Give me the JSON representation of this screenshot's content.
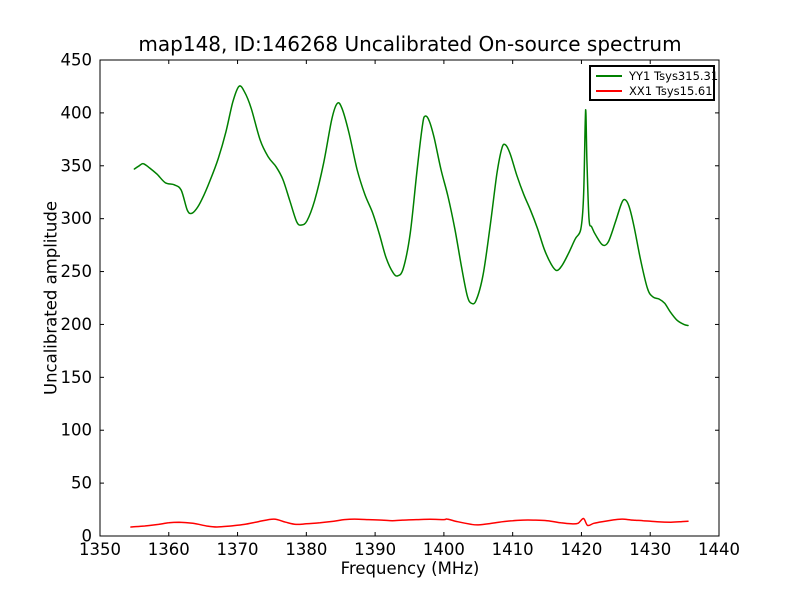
{
  "chart_data": {
    "type": "line",
    "title": "map148, ID:146268 Uncalibrated On-source spectrum",
    "xlabel": "Frequency (MHz)",
    "ylabel": "Uncalibrated amplitude",
    "xlim": [
      1350,
      1440
    ],
    "ylim": [
      0,
      450
    ],
    "xticks": [
      1350,
      1360,
      1370,
      1380,
      1390,
      1400,
      1410,
      1420,
      1430,
      1440
    ],
    "yticks": [
      0,
      50,
      100,
      150,
      200,
      250,
      300,
      350,
      400,
      450
    ],
    "grid": false,
    "legend_position": "upper right",
    "background": "#ffffff",
    "axis_color": "#000000",
    "series": [
      {
        "name": "YY1",
        "label": "YY1 Tsys315.31",
        "color": "#008000",
        "points": [
          [
            1355.0,
            347
          ],
          [
            1355.7,
            350
          ],
          [
            1356.3,
            352
          ],
          [
            1357.2,
            348
          ],
          [
            1358.3,
            342
          ],
          [
            1359.5,
            334
          ],
          [
            1360.8,
            332
          ],
          [
            1361.8,
            327
          ],
          [
            1362.7,
            308
          ],
          [
            1363.3,
            305
          ],
          [
            1364.0,
            309
          ],
          [
            1364.8,
            318
          ],
          [
            1366.0,
            336
          ],
          [
            1367.2,
            357
          ],
          [
            1368.3,
            382
          ],
          [
            1369.3,
            410
          ],
          [
            1370.2,
            425
          ],
          [
            1371.0,
            420
          ],
          [
            1372.0,
            404
          ],
          [
            1373.3,
            374
          ],
          [
            1374.5,
            358
          ],
          [
            1375.6,
            349
          ],
          [
            1376.6,
            337
          ],
          [
            1377.6,
            317
          ],
          [
            1378.6,
            297
          ],
          [
            1379.3,
            294
          ],
          [
            1380.1,
            298
          ],
          [
            1381.2,
            317
          ],
          [
            1382.5,
            352
          ],
          [
            1383.7,
            394
          ],
          [
            1384.5,
            409
          ],
          [
            1385.2,
            404
          ],
          [
            1386.2,
            381
          ],
          [
            1387.4,
            346
          ],
          [
            1388.5,
            323
          ],
          [
            1389.6,
            306
          ],
          [
            1390.6,
            286
          ],
          [
            1391.6,
            263
          ],
          [
            1392.6,
            249
          ],
          [
            1393.3,
            246
          ],
          [
            1394.1,
            253
          ],
          [
            1395.1,
            286
          ],
          [
            1396.1,
            346
          ],
          [
            1396.9,
            389
          ],
          [
            1397.3,
            397
          ],
          [
            1397.9,
            392
          ],
          [
            1398.6,
            376
          ],
          [
            1399.6,
            346
          ],
          [
            1400.6,
            321
          ],
          [
            1401.6,
            290
          ],
          [
            1402.6,
            253
          ],
          [
            1403.4,
            227
          ],
          [
            1404.0,
            220
          ],
          [
            1404.7,
            223
          ],
          [
            1405.7,
            247
          ],
          [
            1406.7,
            292
          ],
          [
            1407.7,
            342
          ],
          [
            1408.4,
            366
          ],
          [
            1408.9,
            370
          ],
          [
            1409.6,
            362
          ],
          [
            1410.6,
            341
          ],
          [
            1411.6,
            323
          ],
          [
            1412.6,
            308
          ],
          [
            1413.6,
            291
          ],
          [
            1414.6,
            271
          ],
          [
            1415.6,
            257
          ],
          [
            1416.4,
            251
          ],
          [
            1417.2,
            256
          ],
          [
            1418.1,
            267
          ],
          [
            1419.1,
            281
          ],
          [
            1419.9,
            290
          ],
          [
            1420.3,
            320
          ],
          [
            1420.55,
            390
          ],
          [
            1420.65,
            400
          ],
          [
            1420.8,
            355
          ],
          [
            1421.1,
            300
          ],
          [
            1421.5,
            292
          ],
          [
            1422.2,
            283
          ],
          [
            1423.1,
            275
          ],
          [
            1423.9,
            278
          ],
          [
            1424.9,
            296
          ],
          [
            1425.8,
            314
          ],
          [
            1426.3,
            318
          ],
          [
            1426.9,
            312
          ],
          [
            1427.6,
            294
          ],
          [
            1428.6,
            261
          ],
          [
            1429.6,
            234
          ],
          [
            1430.4,
            226
          ],
          [
            1431.3,
            224
          ],
          [
            1432.1,
            220
          ],
          [
            1432.9,
            212
          ],
          [
            1433.9,
            204
          ],
          [
            1434.9,
            200
          ],
          [
            1435.5,
            199
          ]
        ]
      },
      {
        "name": "XX1",
        "label": "XX1 Tsys15.61",
        "color": "#ff0000",
        "points": [
          [
            1354.5,
            8.5
          ],
          [
            1356.5,
            9.5
          ],
          [
            1358.5,
            11
          ],
          [
            1360.0,
            12.5
          ],
          [
            1361.5,
            13
          ],
          [
            1363.5,
            12
          ],
          [
            1365.5,
            9.5
          ],
          [
            1367.0,
            8.5
          ],
          [
            1369.0,
            9.5
          ],
          [
            1371.0,
            11
          ],
          [
            1373.0,
            13.5
          ],
          [
            1375.3,
            16
          ],
          [
            1377.0,
            13
          ],
          [
            1378.5,
            11
          ],
          [
            1380.0,
            11.5
          ],
          [
            1382.0,
            12.5
          ],
          [
            1384.0,
            14
          ],
          [
            1385.5,
            15.5
          ],
          [
            1387.0,
            16
          ],
          [
            1389.0,
            15.5
          ],
          [
            1391.0,
            15
          ],
          [
            1392.5,
            14.5
          ],
          [
            1394.0,
            15
          ],
          [
            1396.0,
            15.5
          ],
          [
            1398.0,
            15.8
          ],
          [
            1400.0,
            15.5
          ],
          [
            1400.5,
            16
          ],
          [
            1402.0,
            13.5
          ],
          [
            1404.0,
            11
          ],
          [
            1405.0,
            10.5
          ],
          [
            1406.5,
            11.5
          ],
          [
            1408.0,
            13
          ],
          [
            1410.0,
            14.5
          ],
          [
            1411.5,
            15
          ],
          [
            1413.0,
            15
          ],
          [
            1415.0,
            14.5
          ],
          [
            1417.0,
            12.5
          ],
          [
            1418.5,
            11.5
          ],
          [
            1419.5,
            12
          ],
          [
            1420.3,
            16.5
          ],
          [
            1420.9,
            10
          ],
          [
            1421.8,
            12
          ],
          [
            1423.0,
            13.5
          ],
          [
            1425.0,
            15.5
          ],
          [
            1426.0,
            16
          ],
          [
            1427.5,
            15
          ],
          [
            1429.0,
            14.5
          ],
          [
            1431.0,
            13.5
          ],
          [
            1433.0,
            13
          ],
          [
            1434.5,
            13.5
          ],
          [
            1435.5,
            14
          ]
        ]
      }
    ]
  }
}
